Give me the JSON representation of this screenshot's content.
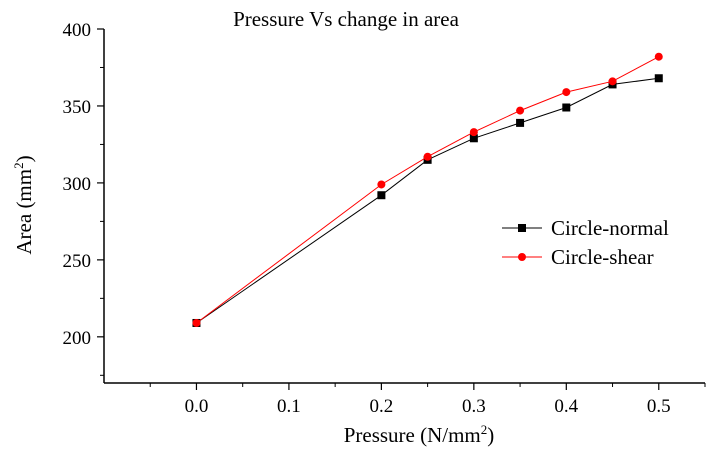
{
  "chart_data": {
    "type": "line",
    "title": "Pressure Vs change in area",
    "xlabel": {
      "text": "Pressure (N/mm",
      "sup": "2",
      "suffix": ")"
    },
    "ylabel": {
      "text": "Area (mm",
      "sup": "2",
      "suffix": ")"
    },
    "xlim": [
      -0.1,
      0.55
    ],
    "ylim": [
      170,
      400
    ],
    "x_ticks": [
      0.0,
      0.1,
      0.2,
      0.3,
      0.4,
      0.5
    ],
    "x_tick_labels": [
      "0.0",
      "0.1",
      "0.2",
      "0.3",
      "0.4",
      "0.5"
    ],
    "y_ticks": [
      200,
      250,
      300,
      350,
      400
    ],
    "y_tick_labels": [
      "200",
      "250",
      "300",
      "350",
      "400"
    ],
    "grid": false,
    "legend_position": "right",
    "series": [
      {
        "name": "Circle-normal",
        "color": "#000000",
        "marker": "square",
        "x": [
          0.0,
          0.2,
          0.25,
          0.3,
          0.35,
          0.4,
          0.45,
          0.5
        ],
        "y": [
          209,
          292,
          315,
          329,
          339,
          349,
          364,
          368
        ]
      },
      {
        "name": "Circle-shear",
        "color": "#ff0000",
        "marker": "circle",
        "x": [
          0.0,
          0.2,
          0.25,
          0.3,
          0.35,
          0.4,
          0.45,
          0.5
        ],
        "y": [
          209,
          299,
          317,
          333,
          347,
          359,
          366,
          382
        ]
      }
    ]
  }
}
